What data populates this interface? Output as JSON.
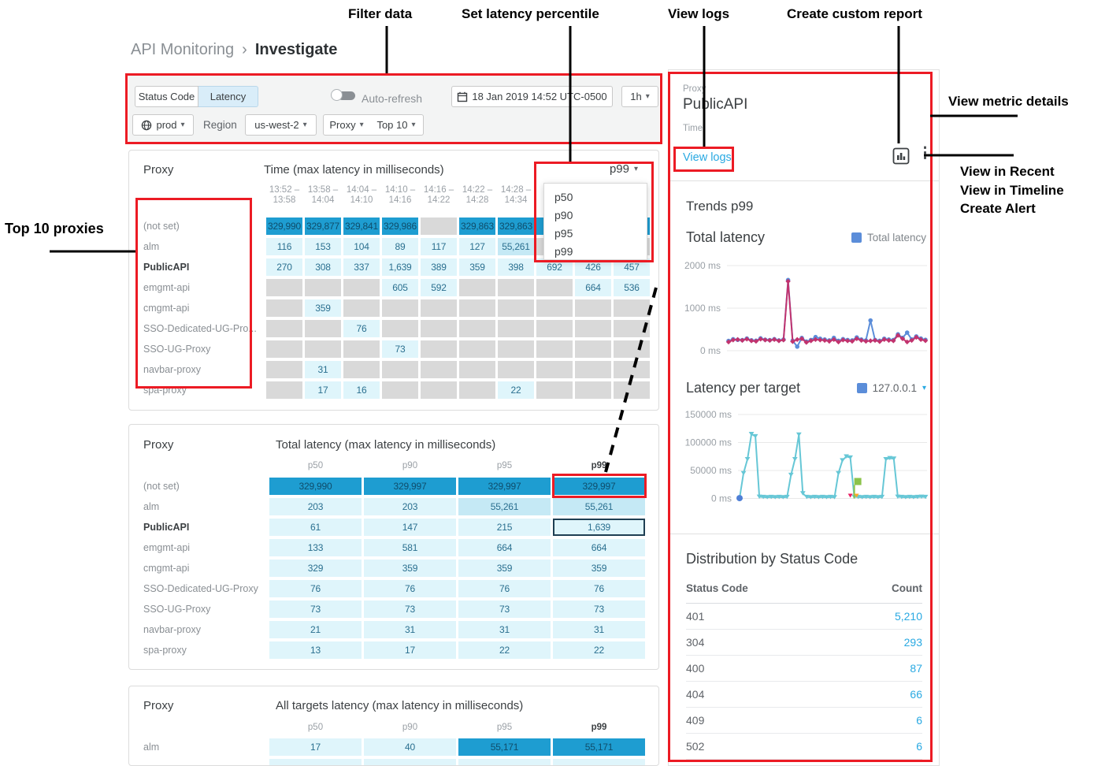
{
  "annotations": {
    "filter_data": "Filter data",
    "set_latency_percentile": "Set latency percentile",
    "view_logs": "View logs",
    "create_custom_report": "Create custom report",
    "view_metric_details": "View metric details",
    "kebab_menu_items": [
      "View in Recent",
      "View in Timeline",
      "Create Alert"
    ],
    "top_10_proxies": "Top 10 proxies"
  },
  "breadcrumb": {
    "parent": "API Monitoring",
    "separator": "›",
    "current": "Investigate"
  },
  "filter_bar": {
    "tabs": [
      {
        "label": "Status Code",
        "selected": false
      },
      {
        "label": "Latency",
        "selected": true
      }
    ],
    "auto_refresh_label": "Auto-refresh",
    "datetime": "18 Jan 2019 14:52 UTC-0500",
    "time_range": "1h",
    "environment": "prod",
    "region_label": "Region",
    "region": "us-west-2",
    "dimension": "Proxy",
    "top_filter": "Top 10"
  },
  "time_table": {
    "proxy_header": "Proxy",
    "title": "Time (max latency in milliseconds)",
    "percentile": "p99",
    "percentile_options": [
      "p50",
      "p90",
      "p95",
      "p99"
    ],
    "columns": [
      [
        "13:52 –",
        "13:58"
      ],
      [
        "13:58 –",
        "14:04"
      ],
      [
        "14:04 –",
        "14:10"
      ],
      [
        "14:10 –",
        "14:16"
      ],
      [
        "14:16 –",
        "14:22"
      ],
      [
        "14:22 –",
        "14:28"
      ],
      [
        "14:28 –",
        "14:34"
      ],
      [
        "",
        ""
      ],
      [
        "",
        ""
      ],
      [
        "",
        ""
      ]
    ],
    "rows": [
      {
        "label": "(not set)",
        "values": [
          "329,990",
          "329,877",
          "329,841",
          "329,986",
          null,
          "329,863",
          "329,863",
          null,
          null,
          null
        ],
        "levels": [
          null,
          null,
          null,
          null,
          null,
          null,
          null,
          "dark",
          "dark",
          "dark"
        ]
      },
      {
        "label": "alm",
        "values": [
          "116",
          "153",
          "104",
          "89",
          "117",
          "127",
          "55,261",
          null,
          null,
          null
        ]
      },
      {
        "label": "PublicAPI",
        "bold": true,
        "values": [
          "270",
          "308",
          "337",
          "1,639",
          "389",
          "359",
          "398",
          "692",
          "426",
          "457"
        ]
      },
      {
        "label": "emgmt-api",
        "values": [
          null,
          null,
          null,
          "605",
          "592",
          null,
          null,
          null,
          "664",
          "536"
        ]
      },
      {
        "label": "cmgmt-api",
        "values": [
          null,
          "359",
          null,
          null,
          null,
          null,
          null,
          null,
          null,
          null
        ]
      },
      {
        "label": "SSO-Dedicated-UG-Pro...",
        "values": [
          null,
          null,
          "76",
          null,
          null,
          null,
          null,
          null,
          null,
          null
        ]
      },
      {
        "label": "SSO-UG-Proxy",
        "values": [
          null,
          null,
          null,
          "73",
          null,
          null,
          null,
          null,
          null,
          null
        ]
      },
      {
        "label": "navbar-proxy",
        "values": [
          null,
          "31",
          null,
          null,
          null,
          null,
          null,
          null,
          null,
          null
        ]
      },
      {
        "label": "spa-proxy",
        "values": [
          null,
          "17",
          "16",
          null,
          null,
          null,
          "22",
          null,
          null,
          null
        ]
      }
    ]
  },
  "total_latency_table": {
    "proxy_header": "Proxy",
    "title": "Total latency (max latency in milliseconds)",
    "columns": [
      "p50",
      "p90",
      "p95",
      "p99"
    ],
    "rows": [
      {
        "label": "(not set)",
        "values": [
          "329,990",
          "329,997",
          "329,997",
          "329,997"
        ]
      },
      {
        "label": "alm",
        "values": [
          "203",
          "203",
          "55,261",
          "55,261"
        ]
      },
      {
        "label": "PublicAPI",
        "bold": true,
        "values": [
          "61",
          "147",
          "215",
          "1,639"
        ],
        "selected_col": 3
      },
      {
        "label": "emgmt-api",
        "values": [
          "133",
          "581",
          "664",
          "664"
        ]
      },
      {
        "label": "cmgmt-api",
        "values": [
          "329",
          "359",
          "359",
          "359"
        ]
      },
      {
        "label": "SSO-Dedicated-UG-Proxy",
        "values": [
          "76",
          "76",
          "76",
          "76"
        ]
      },
      {
        "label": "SSO-UG-Proxy",
        "values": [
          "73",
          "73",
          "73",
          "73"
        ]
      },
      {
        "label": "navbar-proxy",
        "values": [
          "21",
          "31",
          "31",
          "31"
        ]
      },
      {
        "label": "spa-proxy",
        "values": [
          "13",
          "17",
          "22",
          "22"
        ]
      }
    ]
  },
  "all_targets_table": {
    "proxy_header": "Proxy",
    "title": "All targets latency (max latency in milliseconds)",
    "columns": [
      "p50",
      "p90",
      "p95",
      "p99"
    ],
    "rows": [
      {
        "label": "alm",
        "values": [
          "17",
          "40",
          "55,171",
          "55,171"
        ],
        "levels": [
          null,
          null,
          "dark",
          "dark"
        ]
      },
      {
        "label": "",
        "values": [
          " ",
          " ",
          " ",
          " "
        ]
      }
    ]
  },
  "right_panel": {
    "proxy_label": "Proxy",
    "proxy_name": "PublicAPI",
    "time_label": "Time",
    "view_logs_link": "View logs",
    "trends_title": "Trends p99",
    "distribution": {
      "title": "Distribution by Status Code",
      "code_header": "Status Code",
      "count_header": "Count",
      "rows": [
        {
          "code": "401",
          "count": "5,210"
        },
        {
          "code": "304",
          "count": "293"
        },
        {
          "code": "400",
          "count": "87"
        },
        {
          "code": "404",
          "count": "66"
        },
        {
          "code": "409",
          "count": "6"
        },
        {
          "code": "502",
          "count": "6"
        }
      ]
    }
  },
  "chart_data": [
    {
      "type": "line",
      "title": "Total latency",
      "legend": [
        "Total latency"
      ],
      "ylim": [
        0,
        2000
      ],
      "yticks": [
        "2000 ms",
        "1000 ms",
        "0 ms"
      ],
      "grid": true,
      "legend_position": "top-right",
      "series": [
        {
          "name": "total-latency-blue",
          "color": "#5B8DD9",
          "marker": "circle",
          "values": [
            230,
            270,
            255,
            250,
            285,
            245,
            235,
            290,
            258,
            250,
            272,
            242,
            262,
            1660,
            235,
            95,
            300,
            215,
            252,
            320,
            282,
            262,
            242,
            302,
            232,
            272,
            252,
            242,
            312,
            262,
            242,
            710,
            252,
            232,
            282,
            262,
            252,
            385,
            302,
            425,
            265,
            335,
            285,
            255
          ]
        },
        {
          "name": "total-latency-magenta",
          "color": "#C2336E",
          "marker": "diamond",
          "values": [
            205,
            252,
            262,
            242,
            272,
            232,
            222,
            272,
            252,
            242,
            262,
            232,
            252,
            1630,
            215,
            262,
            282,
            195,
            232,
            262,
            252,
            242,
            222,
            262,
            205,
            252,
            232,
            222,
            282,
            242,
            222,
            232,
            242,
            215,
            262,
            242,
            232,
            362,
            282,
            205,
            242,
            315,
            262,
            235
          ]
        }
      ]
    },
    {
      "type": "line",
      "title": "Latency per target",
      "legend": [
        "127.0.0.1"
      ],
      "ylim": [
        0,
        150000
      ],
      "yticks": [
        "150000 ms",
        "100000 ms",
        "50000 ms",
        "0 ms"
      ],
      "grid": true,
      "legend_position": "top-right",
      "series": [
        {
          "name": "127.0.0.1",
          "color": "#66C7D6",
          "marker": "triangle-down",
          "values": [
            600,
            45000,
            70000,
            115000,
            111000,
            3000,
            2500,
            2000,
            2500,
            2000,
            2500,
            2000,
            2500,
            42000,
            70000,
            114000,
            9000,
            2500,
            2000,
            2500,
            2000,
            2500,
            2000,
            2500,
            2000,
            45000,
            68000,
            75000,
            73000,
            3000,
            2500,
            2000,
            2500,
            2000,
            2500,
            2000,
            2500,
            70000,
            72000,
            71000,
            3000,
            2500,
            2000,
            2500,
            2000,
            2500,
            3000,
            2500
          ]
        }
      ],
      "annotations": [
        {
          "kind": "start-dot",
          "x_index": 0,
          "color": "#4F7FD6"
        },
        {
          "kind": "flag",
          "x_index": 29,
          "color": "#8BC34A"
        },
        {
          "kind": "small-triangle",
          "x_index": 28,
          "color": "#E91E63"
        },
        {
          "kind": "small-triangle",
          "x_index": 29.6,
          "color": "#FFA726"
        }
      ]
    }
  ],
  "colors": {
    "annotation_red": "#EC1B24",
    "heatmap_dark": "#1E9DD1",
    "heatmap_medium": "#C5E9F5",
    "heatmap_light": "#DFF5FB",
    "heatmap_empty": "#D9D9D9",
    "link_blue": "#29A9E2",
    "chart_blue": "#5B8DD9",
    "chart_magenta": "#C2336E",
    "chart_teal": "#66C7D6",
    "selected_tab_bg": "#D9EDF9"
  }
}
